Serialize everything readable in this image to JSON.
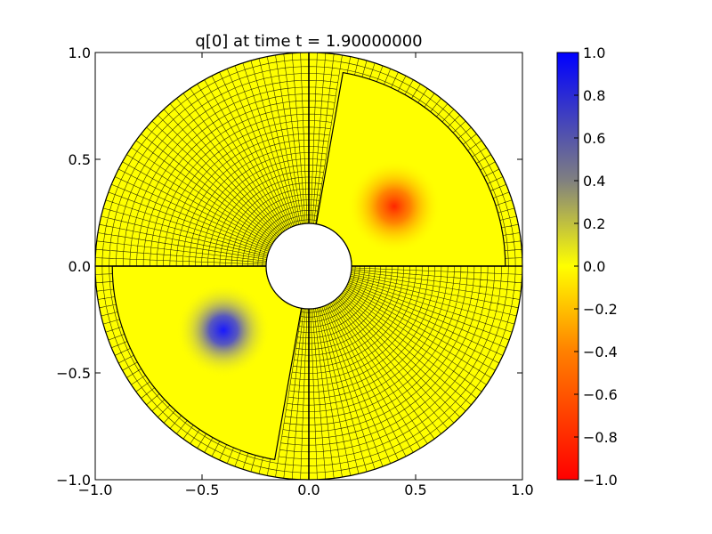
{
  "chart_data": {
    "type": "heatmap",
    "title": "q[0] at time t =      1.90000000",
    "xlabel": "",
    "ylabel": "",
    "xlim": [
      -1.0,
      1.0
    ],
    "ylim": [
      -1.0,
      1.0
    ],
    "xticks": [
      -1.0,
      -0.5,
      0.0,
      0.5,
      1.0
    ],
    "yticks": [
      -1.0,
      -0.5,
      0.0,
      0.5,
      1.0
    ],
    "xtick_labels": [
      "−1.0",
      "−0.5",
      "0.0",
      "0.5",
      "1.0"
    ],
    "ytick_labels": [
      "−1.0",
      "−0.5",
      "0.0",
      "0.5",
      "1.0"
    ],
    "domain": {
      "shape": "annulus",
      "inner_radius": 0.2,
      "outer_radius": 1.0,
      "mapped_grid_lines": true
    },
    "refined_patches": [
      {
        "name": "upper-right",
        "theta_deg": [
          0,
          80
        ],
        "r": [
          0.2,
          0.92
        ]
      },
      {
        "name": "lower-left",
        "theta_deg": [
          180,
          260
        ],
        "r": [
          0.2,
          0.92
        ]
      }
    ],
    "features": [
      {
        "name": "negative-blob",
        "x": 0.4,
        "y": 0.28,
        "peak": -0.8,
        "color": "red"
      },
      {
        "name": "positive-blob",
        "x": -0.4,
        "y": -0.3,
        "peak": 0.8,
        "color": "blue"
      }
    ],
    "colorbar": {
      "min": -1.0,
      "max": 1.0,
      "ticks": [
        1.0,
        0.8,
        0.6,
        0.4,
        0.2,
        0.0,
        -0.2,
        -0.4,
        -0.6,
        -0.8,
        -1.0
      ],
      "tick_labels": [
        "1.0",
        "0.8",
        "0.6",
        "0.4",
        "0.2",
        "0.0",
        "−0.2",
        "−0.4",
        "−0.6",
        "−0.8",
        "−1.0"
      ],
      "stops": [
        {
          "value": 1.0,
          "color": "#0000ff"
        },
        {
          "value": 0.4,
          "color": "#808080"
        },
        {
          "value": 0.0,
          "color": "#ffff00"
        },
        {
          "value": -0.4,
          "color": "#ff8000"
        },
        {
          "value": -1.0,
          "color": "#ff0000"
        }
      ]
    }
  }
}
